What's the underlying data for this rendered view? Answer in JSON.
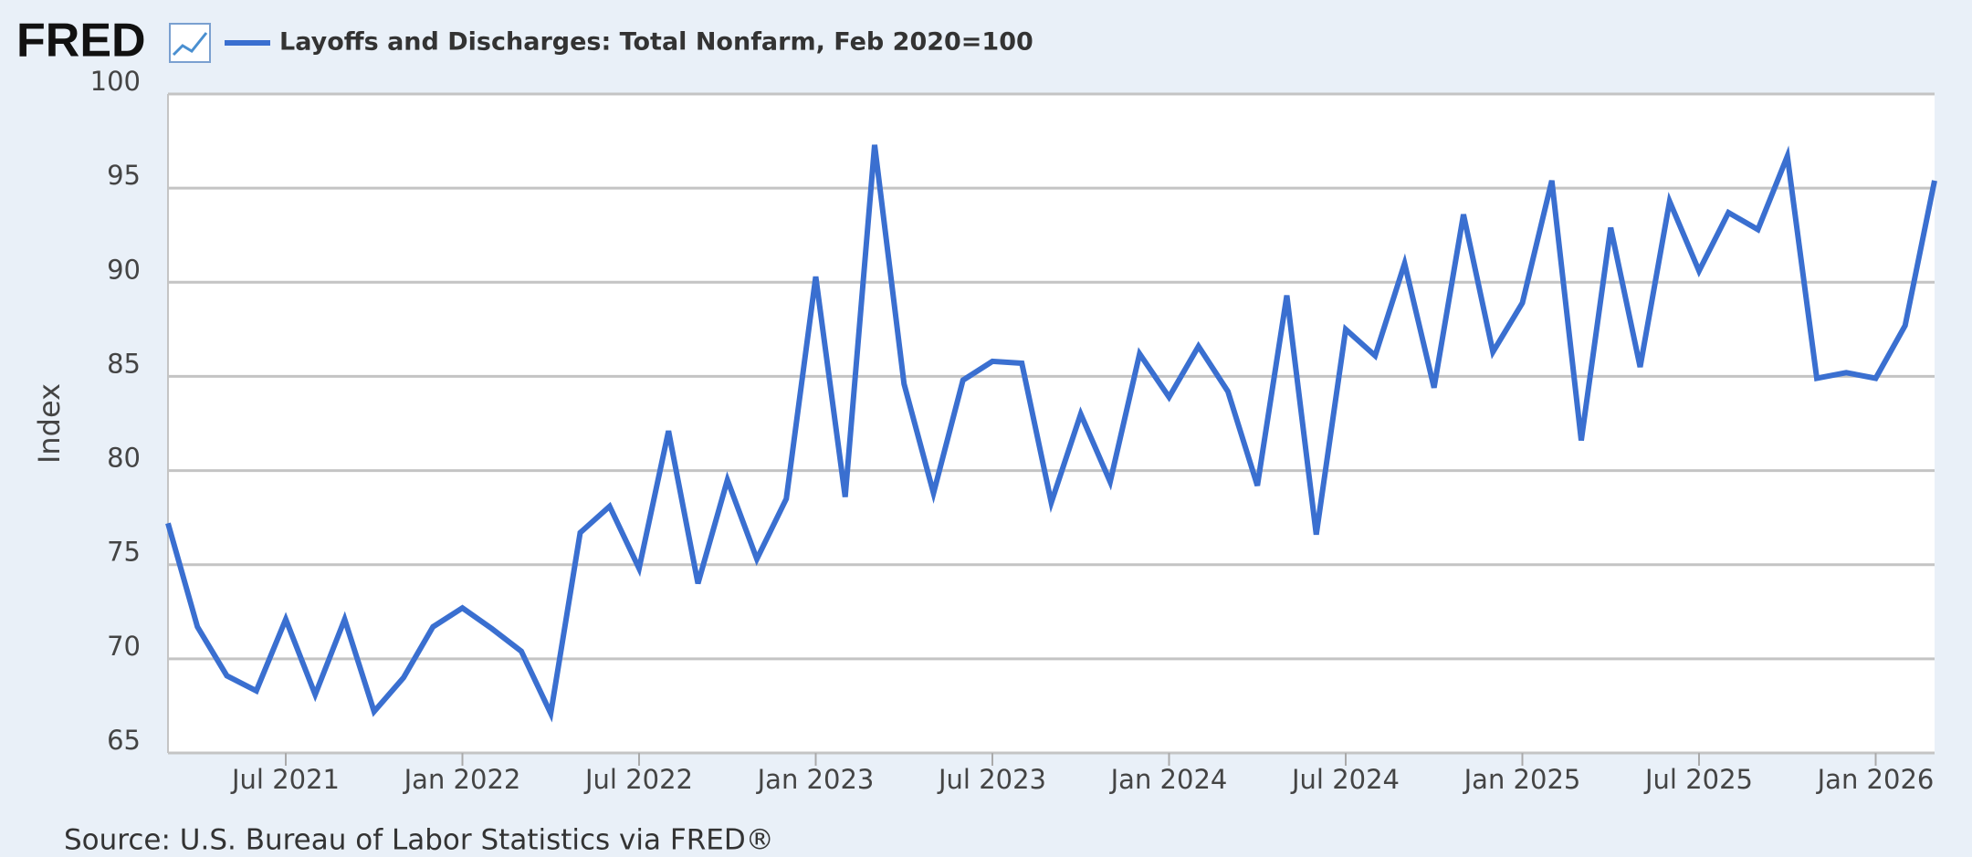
{
  "logo": "FRED",
  "chart_data": {
    "type": "line",
    "title": null,
    "y_label": "Index",
    "source": "Source: U.S. Bureau of Labor Statistics via FRED®",
    "x": [
      "2021-03",
      "2021-04",
      "2021-05",
      "2021-06",
      "2021-07",
      "2021-08",
      "2021-09",
      "2021-10",
      "2021-11",
      "2021-12",
      "2022-01",
      "2022-02",
      "2022-03",
      "2022-04",
      "2022-05",
      "2022-06",
      "2022-07",
      "2022-08",
      "2022-09",
      "2022-10",
      "2022-11",
      "2022-12",
      "2023-01",
      "2023-02",
      "2023-03",
      "2023-04",
      "2023-05",
      "2023-06",
      "2023-07",
      "2023-08",
      "2023-09",
      "2023-10",
      "2023-11",
      "2023-12",
      "2024-01",
      "2024-02",
      "2024-03",
      "2024-04",
      "2024-05",
      "2024-06",
      "2024-07",
      "2024-08",
      "2024-09",
      "2024-10",
      "2024-11",
      "2024-12",
      "2025-01",
      "2025-02",
      "2025-03",
      "2025-04",
      "2025-05",
      "2025-06",
      "2025-07",
      "2025-08",
      "2025-09",
      "2025-10",
      "2025-11",
      "2025-12",
      "2026-01",
      "2026-02",
      "2026-03"
    ],
    "series": [
      {
        "name": "Layoffs and Discharges: Total Nonfarm, Feb 2020=100",
        "color": "#3a6fd0",
        "values": [
          77.2,
          71.7,
          69.1,
          68.3,
          72.1,
          68.1,
          72.1,
          67.2,
          69.0,
          71.7,
          72.7,
          71.6,
          70.4,
          67.1,
          76.7,
          78.1,
          74.8,
          82.1,
          74.0,
          79.5,
          75.3,
          78.5,
          90.3,
          78.6,
          97.3,
          84.6,
          78.8,
          84.8,
          85.8,
          85.7,
          78.3,
          83.0,
          79.4,
          86.2,
          83.9,
          86.6,
          84.2,
          79.2,
          89.3,
          76.6,
          87.5,
          86.1,
          91.0,
          84.4,
          93.6,
          86.3,
          88.9,
          95.4,
          81.6,
          92.9,
          85.5,
          94.3,
          90.6,
          93.7,
          92.8,
          96.7,
          84.9,
          85.2,
          84.9,
          87.7,
          95.4
        ]
      }
    ],
    "ylim": [
      65,
      100
    ],
    "yticks": [
      65,
      70,
      75,
      80,
      85,
      90,
      95,
      100
    ],
    "xticks": [
      {
        "value": "2021-07",
        "label": "Jul 2021"
      },
      {
        "value": "2022-01",
        "label": "Jan 2022"
      },
      {
        "value": "2022-07",
        "label": "Jul 2022"
      },
      {
        "value": "2023-01",
        "label": "Jan 2023"
      },
      {
        "value": "2023-07",
        "label": "Jul 2023"
      },
      {
        "value": "2024-01",
        "label": "Jan 2024"
      },
      {
        "value": "2024-07",
        "label": "Jul 2024"
      },
      {
        "value": "2025-01",
        "label": "Jan 2025"
      },
      {
        "value": "2025-07",
        "label": "Jul 2025"
      },
      {
        "value": "2026-01",
        "label": "Jan 2026"
      }
    ],
    "grid": true
  }
}
